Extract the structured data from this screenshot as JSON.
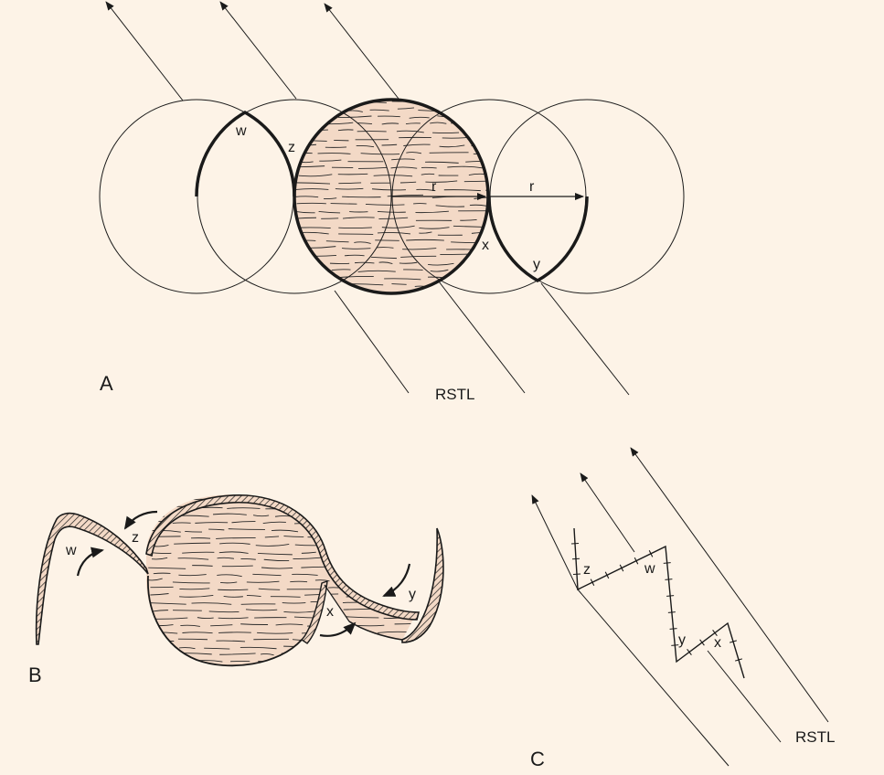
{
  "colors": {
    "background": "#fdf3e7",
    "ink": "#1a1a1a",
    "skin_fill": "#f3d9c6",
    "hatch_edge": "#e9c7b1"
  },
  "panel_a": {
    "label": "A",
    "rstl_label": "RSTL",
    "radius_label_1": "r",
    "radius_label_2": "r",
    "point_w": "w",
    "point_z": "z",
    "point_x": "x",
    "point_y": "y"
  },
  "panel_b": {
    "label": "B",
    "flap_w": "w",
    "flap_z": "z",
    "flap_x": "x",
    "flap_y": "y"
  },
  "panel_c": {
    "label": "C",
    "rstl_label": "RSTL",
    "point_z": "z",
    "point_w": "w",
    "point_y": "y",
    "point_x": "x"
  }
}
